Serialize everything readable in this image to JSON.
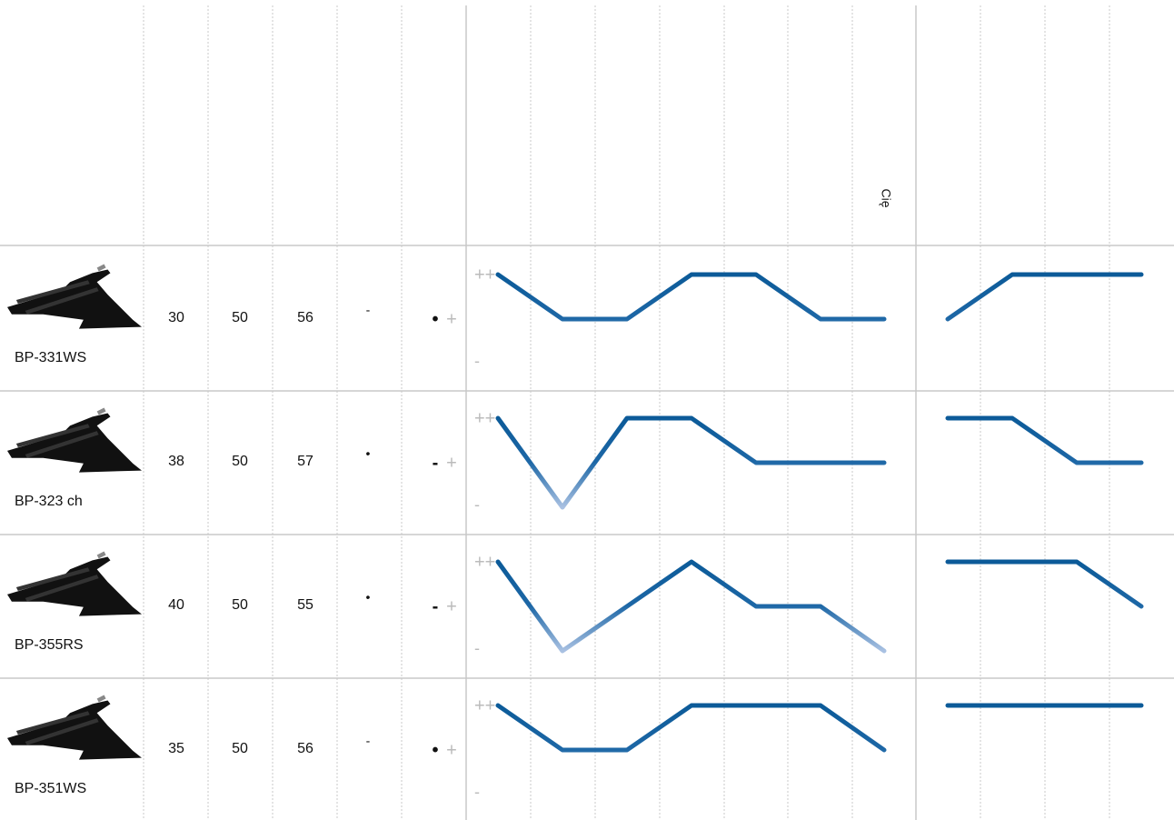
{
  "header": {
    "label": "Cię"
  },
  "level_labels": {
    "high": "++",
    "low": "-"
  },
  "rows": [
    {
      "name": "BP-331WS",
      "values": [
        30,
        50,
        56
      ],
      "mark": "-",
      "rating": [
        "•",
        "+"
      ],
      "curve_a": [
        2,
        1,
        1,
        2,
        2,
        1,
        1
      ],
      "curve_b": [
        1,
        2,
        2,
        2
      ]
    },
    {
      "name": "BP-323 ch",
      "values": [
        38,
        50,
        57
      ],
      "mark": "•",
      "rating": [
        "-",
        "+"
      ],
      "curve_a": [
        2,
        0,
        2,
        2,
        1,
        1,
        1
      ],
      "curve_b": [
        2,
        2,
        1,
        1
      ]
    },
    {
      "name": "BP-355RS",
      "values": [
        40,
        50,
        55
      ],
      "mark": "•",
      "rating": [
        "-",
        "+"
      ],
      "curve_a": [
        2,
        0,
        1,
        2,
        1,
        1,
        0
      ],
      "curve_b": [
        2,
        2,
        2,
        1
      ]
    },
    {
      "name": "BP-351WS",
      "values": [
        35,
        50,
        56
      ],
      "mark": "-",
      "rating": [
        "•",
        "+"
      ],
      "curve_a": [
        2,
        1,
        1,
        2,
        2,
        2,
        1
      ],
      "curve_b": [
        2,
        2,
        2,
        2
      ]
    }
  ]
}
